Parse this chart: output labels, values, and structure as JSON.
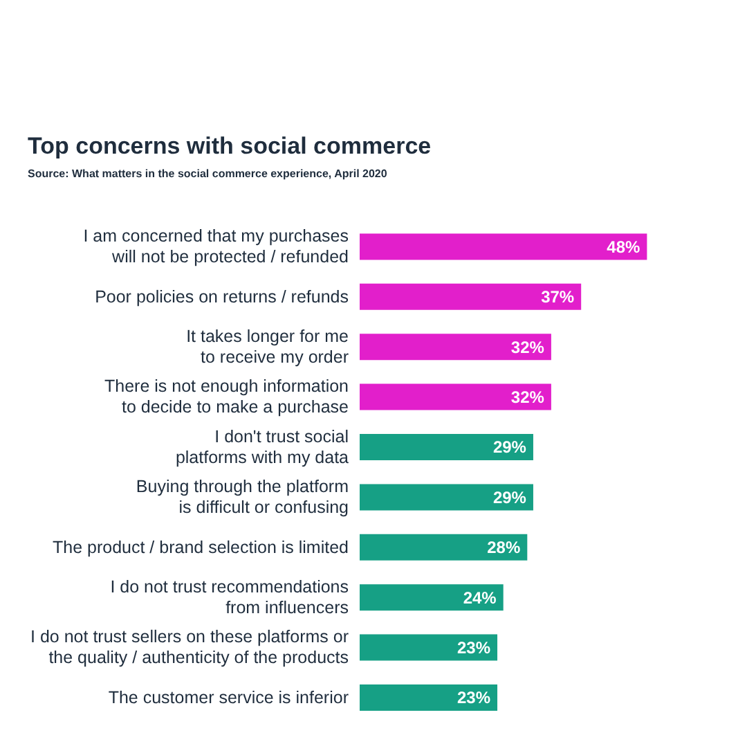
{
  "chart_data": {
    "type": "bar",
    "orientation": "horizontal",
    "title": "Top concerns with social commerce",
    "subtitle": "Source: What matters in the social commerce experience, April 2020",
    "categories": [
      "I am concerned that my purchases\nwill not be protected / refunded",
      "Poor policies on returns / refunds",
      "It takes longer for me\nto receive my order",
      "There is not enough information\nto decide to make a purchase",
      "I don't trust social\nplatforms with my data",
      "Buying through the platform\nis difficult or confusing",
      "The product / brand selection is limited",
      "I do not trust recommendations\nfrom influencers",
      "I do not trust sellers on these platforms or\nthe quality / authenticity of the products",
      "The customer service is inferior"
    ],
    "values": [
      48,
      37,
      32,
      32,
      29,
      29,
      28,
      24,
      23,
      23
    ],
    "value_labels": [
      "48%",
      "37%",
      "32%",
      "32%",
      "29%",
      "29%",
      "28%",
      "24%",
      "23%",
      "23%"
    ],
    "colors": [
      "#e21fcb",
      "#e21fcb",
      "#e21fcb",
      "#e21fcb",
      "#16a085",
      "#16a085",
      "#16a085",
      "#16a085",
      "#16a085",
      "#16a085"
    ],
    "grid": false
  }
}
